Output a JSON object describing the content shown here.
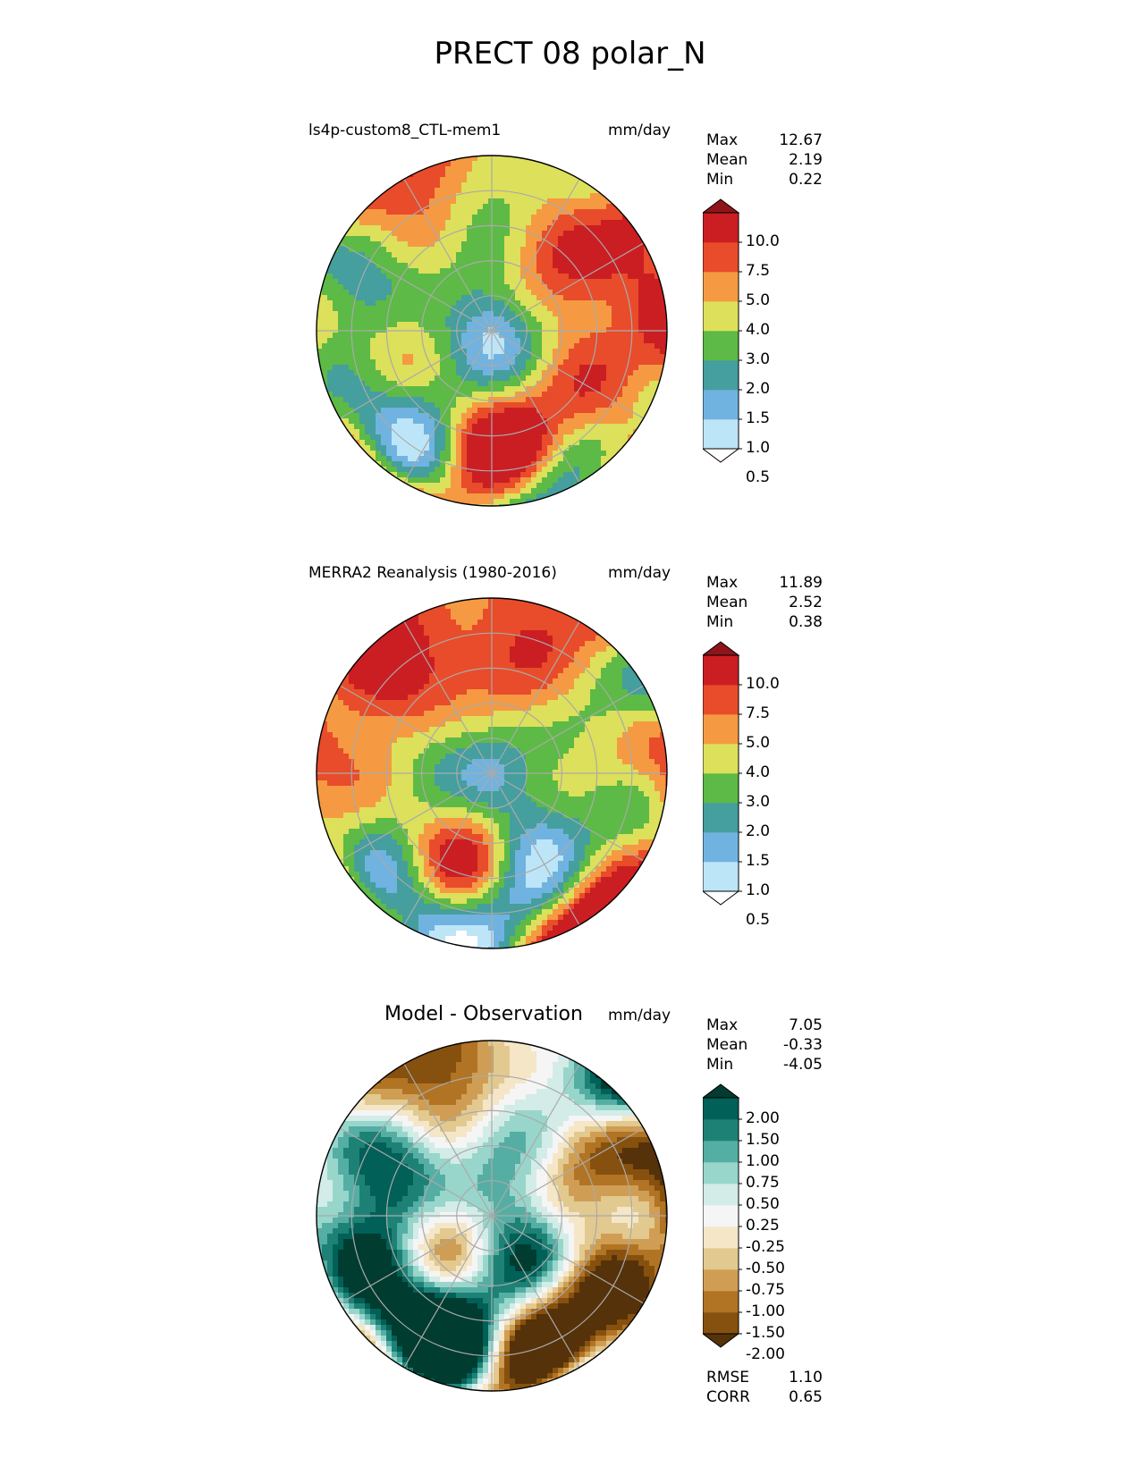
{
  "title": "PRECT 08 polar_N",
  "panels": [
    {
      "left_title": "ls4p-custom8_CTL-mem1",
      "big_title": "",
      "units": "mm/day",
      "stats": [
        {
          "label": "Max",
          "value": "12.67"
        },
        {
          "label": "Mean",
          "value": "2.19"
        },
        {
          "label": "Min",
          "value": "0.22"
        }
      ],
      "colorbar": {
        "ticks": [
          "10.0",
          "7.5",
          "5.0",
          "4.0",
          "3.0",
          "2.0",
          "1.5",
          "1.0",
          "0.5"
        ],
        "colors": [
          "#ffffff",
          "#bde5f8",
          "#70b3e0",
          "#449f9e",
          "#5dba46",
          "#dde05a",
          "#f59a42",
          "#e84c2a",
          "#cb1e23",
          "#8e1519"
        ]
      },
      "map_palette": "precip"
    },
    {
      "left_title": "MERRA2 Reanalysis (1980-2016)",
      "big_title": "",
      "units": "mm/day",
      "stats": [
        {
          "label": "Max",
          "value": "11.89"
        },
        {
          "label": "Mean",
          "value": "2.52"
        },
        {
          "label": "Min",
          "value": "0.38"
        }
      ],
      "colorbar": {
        "ticks": [
          "10.0",
          "7.5",
          "5.0",
          "4.0",
          "3.0",
          "2.0",
          "1.5",
          "1.0",
          "0.5"
        ],
        "colors": [
          "#ffffff",
          "#bde5f8",
          "#70b3e0",
          "#449f9e",
          "#5dba46",
          "#dde05a",
          "#f59a42",
          "#e84c2a",
          "#cb1e23",
          "#8e1519"
        ]
      },
      "map_palette": "precip"
    },
    {
      "left_title": "",
      "big_title": "Model - Observation",
      "units": "mm/day",
      "stats": [
        {
          "label": "Max",
          "value": "7.05"
        },
        {
          "label": "Mean",
          "value": "-0.33"
        },
        {
          "label": "Min",
          "value": "-4.05"
        }
      ],
      "colorbar": {
        "ticks": [
          "2.00",
          "1.50",
          "1.00",
          "0.75",
          "0.50",
          "0.25",
          "-0.25",
          "-0.50",
          "-0.75",
          "-1.00",
          "-1.50",
          "-2.00"
        ],
        "colors": [
          "#553209",
          "#86500f",
          "#b17424",
          "#cf9e54",
          "#e2c98f",
          "#f4e6c7",
          "#f5f5f5",
          "#d3ece8",
          "#98d6cb",
          "#55aea4",
          "#1d8275",
          "#016058",
          "#003c30"
        ]
      },
      "map_palette": "diff",
      "metrics": [
        {
          "label": "RMSE",
          "value": "1.10"
        },
        {
          "label": "CORR",
          "value": "0.65"
        }
      ]
    }
  ],
  "chart_data": {
    "type": "heatmap",
    "title": "PRECT 08 polar_N",
    "projection": "north polar stereographic",
    "units": "mm/day",
    "panels": [
      {
        "name": "ls4p-custom8_CTL-mem1",
        "max": 12.67,
        "mean": 2.19,
        "min": 0.22,
        "levels": [
          0.5,
          1.0,
          1.5,
          2.0,
          3.0,
          4.0,
          5.0,
          7.5,
          10.0
        ]
      },
      {
        "name": "MERRA2 Reanalysis (1980-2016)",
        "max": 11.89,
        "mean": 2.52,
        "min": 0.38,
        "levels": [
          0.5,
          1.0,
          1.5,
          2.0,
          3.0,
          4.0,
          5.0,
          7.5,
          10.0
        ]
      },
      {
        "name": "Model - Observation",
        "max": 7.05,
        "mean": -0.33,
        "min": -4.05,
        "levels": [
          -2.0,
          -1.5,
          -1.0,
          -0.75,
          -0.5,
          -0.25,
          0.25,
          0.5,
          0.75,
          1.0,
          1.5,
          2.0
        ],
        "rmse": 1.1,
        "corr": 0.65
      }
    ]
  }
}
